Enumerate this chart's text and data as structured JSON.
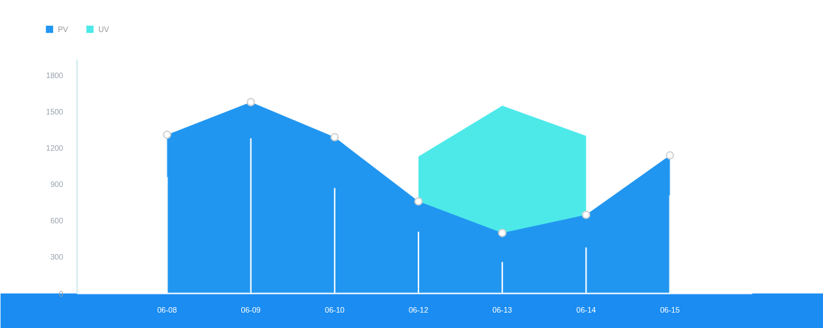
{
  "chart_data": {
    "type": "area",
    "categories": [
      "06-08",
      "06-09",
      "06-10",
      "06-12",
      "06-13",
      "06-14",
      "06-15"
    ],
    "series": [
      {
        "name": "PV",
        "color": "#2196f0",
        "marker": "circle",
        "values": [
          1310,
          1580,
          1290,
          760,
          500,
          650,
          1140
        ]
      },
      {
        "name": "UV",
        "color": "#4de9e9",
        "values": [
          null,
          null,
          null,
          1130,
          1550,
          1300,
          null
        ]
      },
      {
        "type": "bar",
        "color": "#ffffff",
        "values": [
          960,
          1280,
          870,
          510,
          260,
          380,
          810
        ]
      }
    ],
    "ylim": [
      0,
      1930
    ],
    "yticks": [
      0,
      300,
      600,
      900,
      1200,
      1500,
      1800
    ],
    "legend": "top left"
  }
}
